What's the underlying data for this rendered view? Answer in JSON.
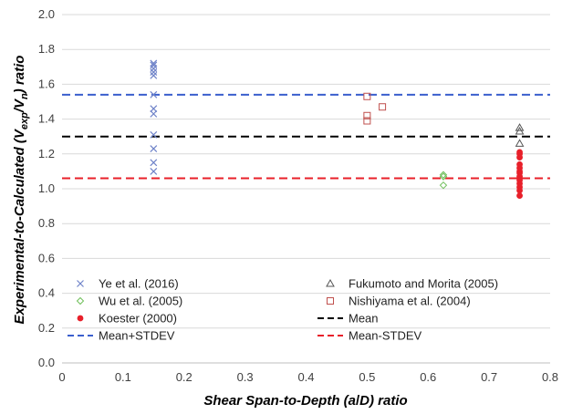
{
  "chart_data": {
    "type": "scatter",
    "xlabel_parts": [
      "Shear Span-to-Depth (a",
      "/",
      "D) ratio"
    ],
    "ylabel_parts": [
      "Experimental-to-Calculated (V",
      "exp",
      "/V",
      "n",
      ") ratio"
    ],
    "xlim": [
      0,
      0.8
    ],
    "ylim": [
      0,
      2.0
    ],
    "x_ticks": [
      "0",
      "0.1",
      "0.2",
      "0.3",
      "0.4",
      "0.5",
      "0.6",
      "0.7",
      "0.8"
    ],
    "y_ticks": [
      "0.0",
      "0.2",
      "0.4",
      "0.6",
      "0.8",
      "1.0",
      "1.2",
      "1.4",
      "1.6",
      "1.8",
      "2.0"
    ],
    "grid": "horizontal",
    "legend_position": "bottom-inside",
    "series": [
      {
        "name": "Ye et al. (2016)",
        "marker": "x",
        "color": "#6f83c9",
        "points": [
          [
            0.15,
            1.72
          ],
          [
            0.15,
            1.71
          ],
          [
            0.15,
            1.69
          ],
          [
            0.15,
            1.67
          ],
          [
            0.15,
            1.65
          ],
          [
            0.15,
            1.54
          ],
          [
            0.15,
            1.46
          ],
          [
            0.15,
            1.43
          ],
          [
            0.15,
            1.31
          ],
          [
            0.15,
            1.23
          ],
          [
            0.15,
            1.15
          ],
          [
            0.15,
            1.1
          ]
        ]
      },
      {
        "name": "Fukumoto and Morita (2005)",
        "marker": "triangle",
        "color": "#555555",
        "points": [
          [
            0.75,
            1.35
          ],
          [
            0.75,
            1.33
          ],
          [
            0.75,
            1.26
          ]
        ]
      },
      {
        "name": "Wu et al. (2005)",
        "marker": "diamond",
        "color": "#6fbf5a",
        "points": [
          [
            0.625,
            1.08
          ],
          [
            0.625,
            1.07
          ],
          [
            0.625,
            1.02
          ]
        ]
      },
      {
        "name": "Nishiyama et al. (2004)",
        "marker": "square",
        "color": "#c0504d",
        "points": [
          [
            0.5,
            1.53
          ],
          [
            0.5,
            1.42
          ],
          [
            0.5,
            1.39
          ],
          [
            0.525,
            1.47
          ]
        ]
      },
      {
        "name": "Koester (2000)",
        "marker": "dot",
        "color": "#e8202a",
        "points": [
          [
            0.75,
            1.21
          ],
          [
            0.75,
            1.2
          ],
          [
            0.75,
            1.18
          ],
          [
            0.75,
            1.14
          ],
          [
            0.75,
            1.12
          ],
          [
            0.75,
            1.1
          ],
          [
            0.75,
            1.09
          ],
          [
            0.75,
            1.07
          ],
          [
            0.75,
            1.05
          ],
          [
            0.75,
            1.03
          ],
          [
            0.75,
            1.01
          ],
          [
            0.75,
            0.99
          ],
          [
            0.75,
            0.96
          ]
        ]
      },
      {
        "name": "Mean",
        "type": "hline",
        "y": 1.3,
        "color": "#000000"
      },
      {
        "name": "Mean+STDEV",
        "type": "hline",
        "y": 1.54,
        "color": "#3a5fcd"
      },
      {
        "name": "Mean-STDEV",
        "type": "hline",
        "y": 1.06,
        "color": "#e8202a"
      }
    ]
  }
}
